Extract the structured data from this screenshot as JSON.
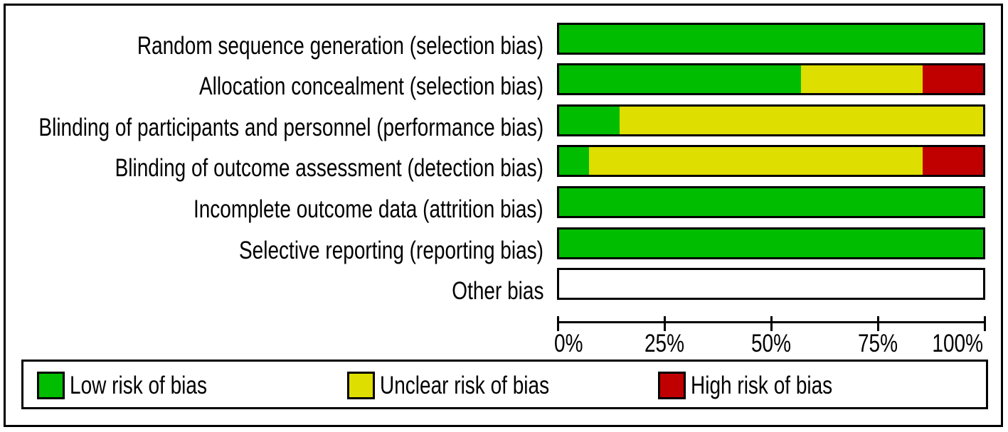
{
  "chart_data": {
    "type": "bar",
    "orientation": "horizontal",
    "stacked": true,
    "unit": "percent",
    "categories": [
      "Random sequence generation (selection bias)",
      "Allocation concealment (selection bias)",
      "Blinding of participants and personnel (performance bias)",
      "Blinding of outcome assessment (detection bias)",
      "Incomplete outcome data (attrition bias)",
      "Selective reporting (reporting bias)",
      "Other bias"
    ],
    "series": [
      {
        "name": "Low risk of bias",
        "key": "low",
        "color": "#00bd00",
        "values": [
          100,
          57.1,
          14.3,
          7.1,
          100,
          100,
          0
        ]
      },
      {
        "name": "Unclear risk of bias",
        "key": "unclear",
        "color": "#dede00",
        "values": [
          0,
          28.6,
          85.7,
          78.6,
          0,
          0,
          0
        ]
      },
      {
        "name": "High risk of bias",
        "key": "high",
        "color": "#c00000",
        "values": [
          0,
          14.3,
          0,
          14.3,
          0,
          0,
          0
        ]
      }
    ],
    "x_ticks": [
      "0%",
      "25%",
      "50%",
      "75%",
      "100%"
    ],
    "xlim": [
      0,
      100
    ],
    "grid": false,
    "legend_position": "bottom"
  },
  "legend": {
    "items": [
      {
        "label": "Low risk of bias",
        "color": "#00bd00"
      },
      {
        "label": "Unclear risk of bias",
        "color": "#dede00"
      },
      {
        "label": "High risk of bias",
        "color": "#c00000"
      }
    ]
  },
  "colors": {
    "frame_border": "#000000",
    "bar_border": "#000000",
    "empty_bar_fill": "#ffffff",
    "text": "#000000"
  }
}
